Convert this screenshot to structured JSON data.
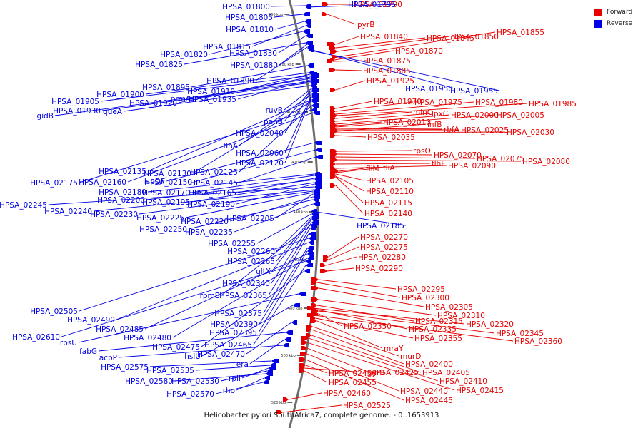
{
  "caption": "Helicobacter pylori SouthAfrica7, complete genome. - 0..1653913",
  "legend": {
    "forward_label": "Forward",
    "reverse_label": "Reverse",
    "forward_color": "#e60000",
    "reverse_color": "#0000e6"
  },
  "ticks": [
    {
      "label": "360 kbp"
    },
    {
      "label": "380 kbp"
    },
    {
      "label": "400 kbp"
    },
    {
      "label": "420 kbp"
    },
    {
      "label": "440 kbp"
    },
    {
      "label": "460 kbp"
    },
    {
      "label": "480 kbp"
    },
    {
      "label": "500 kbp"
    },
    {
      "label": "520 kbp"
    }
  ],
  "forward_genes": [
    "HPSA_01790",
    "pyrB",
    "HPSA_01840",
    "HPSA_01845",
    "HPSA_01850",
    "HPSA_01855",
    "HPSA_01870",
    "HPSA_01875",
    "HPSA_01885",
    "HPSA_01925",
    "HPSA_01970",
    "HPSA_01975",
    "HPSA_01980",
    "HPSA_01985",
    "minC",
    "lpxC",
    "HPSA_02000",
    "HPSA_02005",
    "HPSA_02010",
    "infB",
    "rbfA",
    "HPSA_02025",
    "HPSA_02030",
    "HPSA_02035",
    "rpsO",
    "HPSA_02070",
    "HPSA_02075",
    "HPSA_02080",
    "flhF",
    "HPSA_02090",
    "fliM",
    "fliA",
    "HPSA_02105",
    "HPSA_02110",
    "HPSA_02115",
    "HPSA_02140",
    "HPSA_02270",
    "HPSA_02275",
    "HPSA_02280",
    "HPSA_02290",
    "HPSA_02295",
    "HPSA_02300",
    "HPSA_02305",
    "HPSA_02310",
    "HPSA_02315",
    "HPSA_02320",
    "HPSA_02335",
    "HPSA_02345",
    "HPSA_02350",
    "HPSA_02360",
    "HPSA_02355",
    "mraY",
    "murD",
    "HPSA_02400",
    "HPSA_02405",
    "HPSA_02410",
    "HPSA_02415",
    "HPSA_02425",
    "HPSA_02440",
    "HPSA_02445",
    "HPSA_02450",
    "gyrB",
    "HPSA_02455",
    "HPSA_02460",
    "HPSA_02525"
  ],
  "reverse_genes": [
    "HPSA_01800",
    "HPSA_01795",
    "HPSA_01805",
    "HPSA_01810",
    "HPSA_01815",
    "HPSA_01820",
    "HPSA_01830",
    "HPSA_01825",
    "HPSA_01880",
    "HPSA_01890",
    "HPSA_01950",
    "HPSA_01955",
    "HPSA_01895",
    "HPSA_01900",
    "HPSA_01910",
    "HPSA_01905",
    "HPSA_01920",
    "prmA",
    "HPSA_01935",
    "gidB",
    "HPSA_01930",
    "queA",
    "ruvB",
    "panB",
    "HPSA_02040",
    "flhA",
    "HPSA_02060",
    "HPSA_02120",
    "HPSA_02135",
    "HPSA_02130",
    "HPSA_02125",
    "HPSA_02175",
    "HPSA_02160",
    "ispDF",
    "HPSA_02150",
    "HPSA_02145",
    "HPSA_02180",
    "HPSA_02170",
    "HPSA_02165",
    "HPSA_02200",
    "HPSA_02195",
    "HPSA_02190",
    "HPSA_02245",
    "HPSA_02240",
    "HPSA_02230",
    "HPSA_02225",
    "HPSA_02205",
    "HPSA_02220",
    "HPSA_02250",
    "HPSA_02235",
    "HPSA_02185",
    "HPSA_02255",
    "HPSA_02260",
    "HPSA_02265",
    "gltX",
    "HPSA_02340",
    "rpmB",
    "HPSA_02365",
    "HPSA_02375",
    "HPSA_02505",
    "HPSA_02490",
    "HPSA_02390",
    "HPSA_02395",
    "HPSA_02485",
    "HPSA_02480",
    "HPSA_02610",
    "HPSA_02465",
    "HPSA_02475",
    "rpsU",
    "hslU",
    "HPSA_02470",
    "fabG",
    "era",
    "acpP",
    "HPSA_02575",
    "HPSA_02535",
    "rplI",
    "HPSA_02530",
    "HPSA_02580",
    "rho",
    "HPSA_02570"
  ]
}
